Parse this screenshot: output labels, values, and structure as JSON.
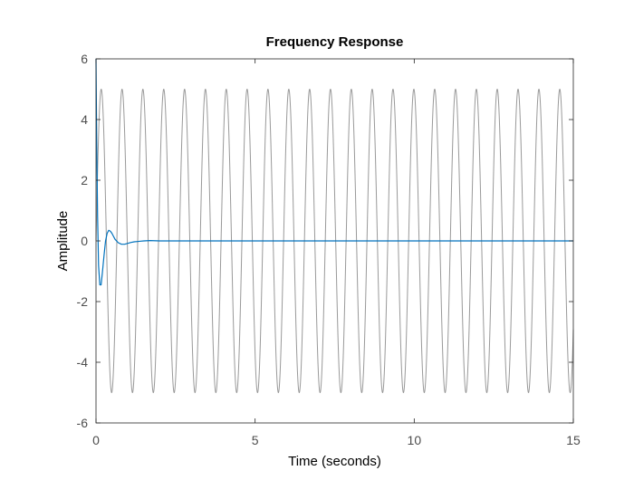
{
  "chart_data": {
    "type": "line",
    "title": "Frequency Response",
    "xlabel": "Time (seconds)",
    "ylabel": "Amplitude",
    "xlim": [
      0,
      15
    ],
    "ylim": [
      -6,
      6
    ],
    "xticks": [
      0,
      5,
      10,
      15
    ],
    "xtick_labels": [
      "0",
      "5",
      "10",
      "15"
    ],
    "yticks": [
      6,
      4,
      2,
      0,
      -2,
      -4,
      -6
    ],
    "ytick_labels": [
      "6",
      "4",
      "2",
      "0",
      "-2",
      "-4",
      "-6"
    ],
    "grid": false,
    "legend": "none",
    "series": [
      {
        "color": "#999999",
        "description_values": "sinusoid, amplitude 5, period ~0.655 s, starts at 0",
        "amplitude": 5,
        "period": 0.655,
        "phase_start": 0
      },
      {
        "color": "#0072bd",
        "x": [
          0,
          0.02,
          0.05,
          0.08,
          0.12,
          0.16,
          0.2,
          0.25,
          0.3,
          0.35,
          0.4,
          0.45,
          0.5,
          0.55,
          0.6,
          0.7,
          0.8,
          0.9,
          1.0,
          1.1,
          1.2,
          1.3,
          1.4,
          1.5,
          1.7,
          2.0,
          2.5,
          15
        ],
        "y": [
          6,
          3.5,
          0.8,
          -0.8,
          -1.45,
          -1.45,
          -1.05,
          -0.5,
          0.0,
          0.25,
          0.35,
          0.32,
          0.25,
          0.15,
          0.05,
          -0.06,
          -0.11,
          -0.11,
          -0.08,
          -0.05,
          -0.03,
          -0.02,
          -0.01,
          0.0,
          0.01,
          0.0,
          0.0,
          0.0
        ]
      }
    ]
  }
}
